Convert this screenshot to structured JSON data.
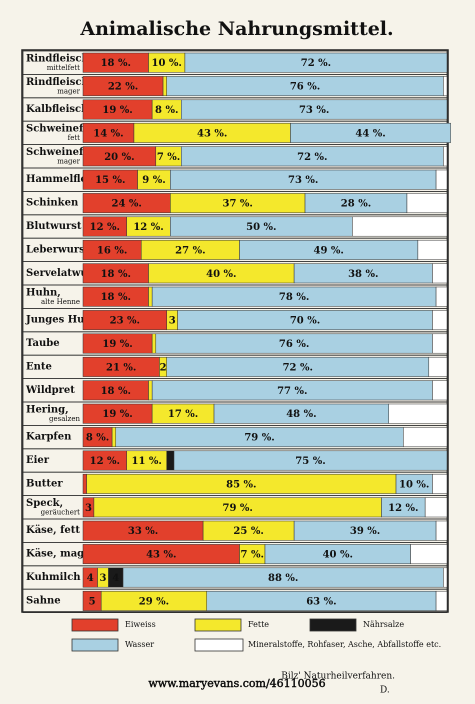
{
  "chart_data": {
    "type": "stacked-bar-horizontal",
    "title": "Animalische Nahrungsmittel.",
    "categories": [
      "Rindfleisch,",
      "Rindfleisch,",
      "Kalbfleisch",
      "Schweinefl.,",
      "Schweinefl.,",
      "Hammelfleisch",
      "Schinken",
      "Blutwurst",
      "Leberwurst",
      "Servelatwurst",
      "Huhn,",
      "Junges Huhn",
      "Taube",
      "Ente",
      "Wildpret",
      "Hering,",
      "Karpfen",
      "Eier",
      "Butter",
      "Speck,",
      "Käse, fett",
      "Käse, mager",
      "Kuhmilch",
      "Sahne"
    ],
    "category_notes": [
      "mittelfett",
      "mager",
      null,
      "fett",
      "mager",
      null,
      null,
      null,
      null,
      null,
      "alte Henne",
      null,
      null,
      null,
      null,
      "gesalzen",
      null,
      null,
      null,
      "geräuchert",
      null,
      null,
      null,
      null
    ],
    "xlim": [
      0,
      100
    ],
    "series": [
      {
        "name": "Eiweiss",
        "color": "#e2402c",
        "values": [
          18,
          22,
          19,
          14,
          20,
          15,
          24,
          12,
          16,
          18,
          18,
          23,
          19,
          21,
          18,
          19,
          8,
          12,
          1,
          3,
          33,
          43,
          4,
          5
        ],
        "value_labels": [
          "18 %.",
          "22 %.",
          "19 %.",
          "14 %.",
          "20 %.",
          "15 %.",
          "24 %.",
          "12 %.",
          "16 %.",
          "18 %.",
          "18 %.",
          "23 %.",
          "19 %.",
          "21 %.",
          "18 %.",
          "19 %.",
          "8 %.",
          "12 %.",
          null,
          "3",
          "33 %.",
          "43 %.",
          "4",
          "5"
        ]
      },
      {
        "name": "Fette",
        "color": "#f4e82c",
        "values": [
          10,
          1,
          8,
          43,
          7,
          9,
          37,
          12,
          27,
          40,
          1,
          3,
          1,
          2,
          1,
          17,
          1,
          11,
          85,
          79,
          25,
          7,
          3,
          29
        ],
        "value_labels": [
          "10 %.",
          null,
          "8 %.",
          "43 %.",
          "7 %.",
          "9 %.",
          "37 %.",
          "12 %.",
          "27 %.",
          "40 %.",
          null,
          "3",
          null,
          "2",
          null,
          "17 %.",
          null,
          "11 %.",
          "85 %.",
          "79 %.",
          "25 %.",
          "7 %.",
          "3",
          "29 %."
        ]
      },
      {
        "name": "Nährsalze",
        "color": "#1a1a1a",
        "values": [
          0,
          0,
          0,
          0,
          0,
          0,
          0,
          0,
          0,
          0,
          0,
          0,
          0,
          0,
          0,
          0,
          0,
          2,
          0,
          0,
          0,
          0,
          4,
          0
        ],
        "value_labels": [
          null,
          null,
          null,
          null,
          null,
          null,
          null,
          null,
          null,
          null,
          null,
          null,
          null,
          null,
          null,
          null,
          null,
          null,
          null,
          null,
          null,
          null,
          "4",
          null
        ]
      },
      {
        "name": "Wasser",
        "color": "#a9d0e2",
        "values": [
          72,
          76,
          73,
          44,
          72,
          73,
          28,
          50,
          49,
          38,
          78,
          70,
          76,
          72,
          77,
          48,
          79,
          75,
          10,
          12,
          39,
          40,
          88,
          63
        ],
        "value_labels": [
          "72 %.",
          "76 %.",
          "73 %.",
          "44 %.",
          "72 %.",
          "73 %.",
          "28 %.",
          "50 %.",
          "49 %.",
          "38 %.",
          "78 %.",
          "70 %.",
          "76 %.",
          "72 %.",
          "77 %.",
          "48 %.",
          "79 %.",
          "75 %.",
          "10 %.",
          "12 %.",
          "39 %.",
          "40 %.",
          "88 %.",
          "63 %."
        ]
      },
      {
        "name": "Mineralstoffe, Rohfaser, Asche, Abfallstoffe etc.",
        "color": "#ffffff",
        "values": [
          0,
          1,
          0,
          0,
          1,
          3,
          11,
          26,
          8,
          4,
          3,
          4,
          4,
          5,
          4,
          16,
          12,
          0,
          4,
          6,
          3,
          10,
          1,
          3
        ]
      }
    ]
  },
  "footer": {
    "source": "Bilz' Naturheilverfahren.",
    "plate": "D.",
    "watermark": "www.maryevans.com/46110056"
  }
}
